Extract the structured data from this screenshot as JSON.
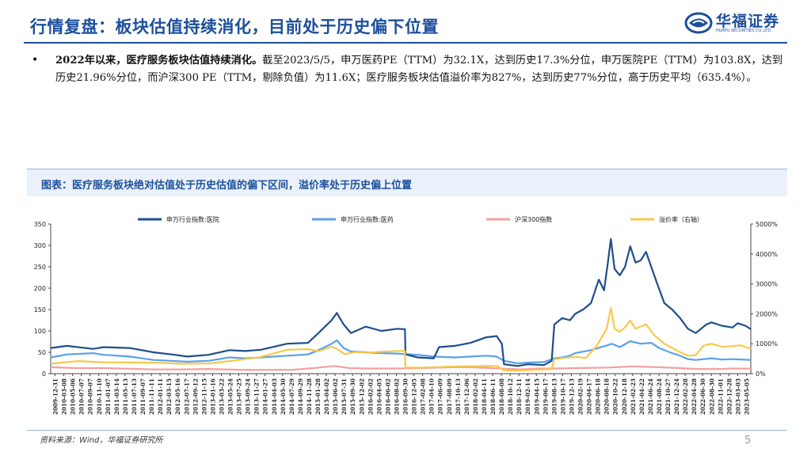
{
  "header": {
    "title": "行情复盘：板块估值持续消化，目前处于历史偏下位置",
    "logo_name": "华福证券",
    "logo_sub": "HUAFU SECURITIES CO.,LTD."
  },
  "bullet": {
    "dot": "•",
    "bold": "2022年以来，医疗服务板块估值持续消化。",
    "text": "截至2023/5/5，申万医药PE（TTM）为32.1X，达到历史17.3%分位，申万医院PE（TTM）为103.8X，达到历史21.96%分位，而沪深300 PE（TTM，剔除负值）为11.6X；医疗服务板块估值溢价率为827%，达到历史77%分位，高于历史平均（635.4%）。"
  },
  "figure": {
    "title": "图表：医疗服务板块绝对估值处于历史估值的偏下区间，溢价率处于历史偏上位置"
  },
  "footer": {
    "source": "资料来源：Wind，华福证券研究所",
    "page": "5"
  },
  "colors": {
    "brand": "#1c4f9c",
    "s1": "#1f4e8c",
    "s2": "#5aa2e8",
    "s3": "#f4a0a0",
    "s4": "#f6c94a"
  },
  "chart_data": {
    "type": "line",
    "legend_position": "top",
    "grid": false,
    "x_ticks": [
      "2009-12-31",
      "2010-03-08",
      "2010-05-06",
      "2010-07-07",
      "2010-09-07",
      "2010-11-10",
      "2011-01-07",
      "2011-03-14",
      "2011-05-13",
      "2011-07-13",
      "2011-09-07",
      "2011-11-11",
      "2012-01-11",
      "2012-03-15",
      "2012-05-16",
      "2012-07-17",
      "2012-09-12",
      "2012-11-15",
      "2013-01-16",
      "2013-03-22",
      "2013-05-24",
      "2013-07-25",
      "2013-09-24",
      "2013-11-27",
      "2014-01-27",
      "2014-04-03",
      "2014-05-30",
      "2014-07-29",
      "2014-09-29",
      "2014-11-28",
      "2015-01-28",
      "2015-04-02",
      "2015-06-02",
      "2015-07-31",
      "2015-09-30",
      "2015-12-02",
      "2016-02-02",
      "2016-04-05",
      "2016-06-02",
      "2016-08-02",
      "2016-09-30",
      "2016-12-05",
      "2017-02-08",
      "2017-04-10",
      "2017-06-09",
      "2017-08-09",
      "2017-10-13",
      "2017-12-06",
      "2018-02-02",
      "2018-04-11",
      "2018-06-11",
      "2018-08-08",
      "2018-10-12",
      "2018-12-11",
      "2019-02-14",
      "2019-04-15",
      "2019-06-17",
      "2019-08-13",
      "2019-10-17",
      "2019-12-13",
      "2020-02-19",
      "2020-04-17",
      "2020-06-18",
      "2020-08-18",
      "2020-10-22",
      "2020-12-18",
      "2021-02-23",
      "2021-04-22",
      "2021-06-24",
      "2021-08-24",
      "2021-10-27",
      "2021-12-24",
      "2022-02-28",
      "2022-04-28",
      "2022-06-30",
      "2022-08-30",
      "2022-11-01",
      "2022-12-28",
      "2023-03-03",
      "2023-05-05"
    ],
    "y_left": {
      "ticks": [
        "0",
        "50",
        "100",
        "150",
        "200",
        "250",
        "300",
        "350"
      ],
      "min": 0,
      "max": 350
    },
    "y_right": {
      "ticks": [
        "0%",
        "1000%",
        "2000%",
        "3000%",
        "4000%",
        "5000%"
      ],
      "min": 0,
      "max": 5000
    },
    "series": [
      {
        "name": "申万行业指数:医院",
        "axis": "left",
        "values": [
          [
            2009.99,
            60
          ],
          [
            2010.3,
            65
          ],
          [
            2010.8,
            58
          ],
          [
            2011.0,
            62
          ],
          [
            2011.5,
            60
          ],
          [
            2011.95,
            50
          ],
          [
            2012.3,
            45
          ],
          [
            2012.6,
            40
          ],
          [
            2013.0,
            44
          ],
          [
            2013.4,
            55
          ],
          [
            2013.7,
            53
          ],
          [
            2014.0,
            56
          ],
          [
            2014.5,
            70
          ],
          [
            2014.9,
            72
          ],
          [
            2015.1,
            95
          ],
          [
            2015.35,
            125
          ],
          [
            2015.45,
            142
          ],
          [
            2015.58,
            115
          ],
          [
            2015.72,
            95
          ],
          [
            2016.0,
            110
          ],
          [
            2016.3,
            100
          ],
          [
            2016.6,
            105
          ],
          [
            2016.75,
            104
          ],
          [
            2016.76,
            45
          ],
          [
            2017.0,
            38
          ],
          [
            2017.3,
            36
          ],
          [
            2017.4,
            62
          ],
          [
            2017.7,
            65
          ],
          [
            2018.0,
            72
          ],
          [
            2018.3,
            85
          ],
          [
            2018.5,
            88
          ],
          [
            2018.6,
            70
          ],
          [
            2018.64,
            22
          ],
          [
            2018.9,
            18
          ],
          [
            2019.1,
            22
          ],
          [
            2019.4,
            20
          ],
          [
            2019.55,
            30
          ],
          [
            2019.6,
            115
          ],
          [
            2019.75,
            130
          ],
          [
            2019.9,
            125
          ],
          [
            2020.0,
            140
          ],
          [
            2020.15,
            150
          ],
          [
            2020.3,
            165
          ],
          [
            2020.45,
            220
          ],
          [
            2020.55,
            195
          ],
          [
            2020.62,
            258
          ],
          [
            2020.68,
            315
          ],
          [
            2020.75,
            245
          ],
          [
            2020.85,
            230
          ],
          [
            2020.95,
            250
          ],
          [
            2021.05,
            298
          ],
          [
            2021.15,
            260
          ],
          [
            2021.25,
            265
          ],
          [
            2021.35,
            285
          ],
          [
            2021.45,
            250
          ],
          [
            2021.55,
            215
          ],
          [
            2021.7,
            165
          ],
          [
            2021.85,
            150
          ],
          [
            2022.0,
            130
          ],
          [
            2022.15,
            105
          ],
          [
            2022.3,
            95
          ],
          [
            2022.5,
            115
          ],
          [
            2022.6,
            120
          ],
          [
            2022.8,
            112
          ],
          [
            2023.0,
            108
          ],
          [
            2023.1,
            118
          ],
          [
            2023.25,
            112
          ],
          [
            2023.35,
            104
          ]
        ]
      },
      {
        "name": "申万行业指数:医药",
        "axis": "left",
        "values": [
          [
            2009.99,
            38
          ],
          [
            2010.3,
            45
          ],
          [
            2010.8,
            48
          ],
          [
            2011.0,
            44
          ],
          [
            2011.5,
            40
          ],
          [
            2011.95,
            32
          ],
          [
            2012.3,
            30
          ],
          [
            2012.6,
            28
          ],
          [
            2013.0,
            30
          ],
          [
            2013.4,
            38
          ],
          [
            2013.7,
            36
          ],
          [
            2014.0,
            38
          ],
          [
            2014.5,
            42
          ],
          [
            2014.9,
            45
          ],
          [
            2015.1,
            55
          ],
          [
            2015.35,
            70
          ],
          [
            2015.45,
            78
          ],
          [
            2015.58,
            60
          ],
          [
            2015.72,
            52
          ],
          [
            2016.0,
            50
          ],
          [
            2016.3,
            48
          ],
          [
            2016.6,
            47
          ],
          [
            2016.75,
            46
          ],
          [
            2017.0,
            44
          ],
          [
            2017.3,
            40
          ],
          [
            2017.7,
            38
          ],
          [
            2018.0,
            40
          ],
          [
            2018.3,
            42
          ],
          [
            2018.5,
            40
          ],
          [
            2018.64,
            30
          ],
          [
            2018.9,
            24
          ],
          [
            2019.1,
            26
          ],
          [
            2019.4,
            27
          ],
          [
            2019.6,
            36
          ],
          [
            2019.75,
            38
          ],
          [
            2019.9,
            42
          ],
          [
            2020.0,
            48
          ],
          [
            2020.3,
            55
          ],
          [
            2020.6,
            66
          ],
          [
            2020.7,
            70
          ],
          [
            2020.85,
            62
          ],
          [
            2021.05,
            76
          ],
          [
            2021.25,
            70
          ],
          [
            2021.45,
            72
          ],
          [
            2021.6,
            60
          ],
          [
            2021.85,
            48
          ],
          [
            2022.0,
            42
          ],
          [
            2022.15,
            34
          ],
          [
            2022.3,
            32
          ],
          [
            2022.6,
            36
          ],
          [
            2022.8,
            33
          ],
          [
            2023.0,
            34
          ],
          [
            2023.35,
            32
          ]
        ]
      },
      {
        "name": "沪深300指数",
        "axis": "left",
        "values": [
          [
            2009.99,
            15
          ],
          [
            2010.5,
            13
          ],
          [
            2011.0,
            13
          ],
          [
            2011.95,
            10
          ],
          [
            2012.5,
            10
          ],
          [
            2013.0,
            11
          ],
          [
            2013.6,
            9
          ],
          [
            2014.0,
            9
          ],
          [
            2014.6,
            9
          ],
          [
            2015.0,
            13
          ],
          [
            2015.4,
            18
          ],
          [
            2015.7,
            13
          ],
          [
            2016.0,
            12
          ],
          [
            2016.6,
            12
          ],
          [
            2017.0,
            13
          ],
          [
            2017.7,
            15
          ],
          [
            2018.0,
            15
          ],
          [
            2018.6,
            12
          ],
          [
            2018.95,
            10
          ],
          [
            2019.3,
            12
          ],
          [
            2019.6,
            12
          ],
          [
            2020.0,
            13
          ],
          [
            2020.6,
            14
          ],
          [
            2021.1,
            17
          ],
          [
            2021.6,
            15
          ],
          [
            2022.0,
            13
          ],
          [
            2022.3,
            11
          ],
          [
            2022.8,
            11
          ],
          [
            2023.0,
            12
          ],
          [
            2023.35,
            11.6
          ]
        ]
      },
      {
        "name": "溢价率（右轴）",
        "axis": "right",
        "values": [
          [
            2009.99,
            330
          ],
          [
            2010.5,
            420
          ],
          [
            2011.0,
            380
          ],
          [
            2011.95,
            370
          ],
          [
            2012.5,
            330
          ],
          [
            2013.0,
            340
          ],
          [
            2013.6,
            460
          ],
          [
            2014.0,
            560
          ],
          [
            2014.5,
            800
          ],
          [
            2014.9,
            820
          ],
          [
            2015.1,
            750
          ],
          [
            2015.35,
            900
          ],
          [
            2015.45,
            830
          ],
          [
            2015.6,
            650
          ],
          [
            2015.8,
            720
          ],
          [
            2016.0,
            700
          ],
          [
            2016.3,
            730
          ],
          [
            2016.6,
            760
          ],
          [
            2016.75,
            760
          ],
          [
            2016.76,
            210
          ],
          [
            2017.0,
            200
          ],
          [
            2017.4,
            220
          ],
          [
            2017.7,
            240
          ],
          [
            2018.0,
            250
          ],
          [
            2018.5,
            260
          ],
          [
            2018.64,
            110
          ],
          [
            2018.9,
            100
          ],
          [
            2019.1,
            120
          ],
          [
            2019.4,
            140
          ],
          [
            2019.55,
            150
          ],
          [
            2019.6,
            480
          ],
          [
            2019.75,
            520
          ],
          [
            2020.0,
            560
          ],
          [
            2020.2,
            520
          ],
          [
            2020.4,
            900
          ],
          [
            2020.5,
            1200
          ],
          [
            2020.6,
            1500
          ],
          [
            2020.68,
            2200
          ],
          [
            2020.75,
            1500
          ],
          [
            2020.85,
            1400
          ],
          [
            2020.95,
            1550
          ],
          [
            2021.05,
            1780
          ],
          [
            2021.15,
            1500
          ],
          [
            2021.35,
            1650
          ],
          [
            2021.5,
            1300
          ],
          [
            2021.7,
            1000
          ],
          [
            2021.85,
            860
          ],
          [
            2022.0,
            720
          ],
          [
            2022.15,
            600
          ],
          [
            2022.3,
            620
          ],
          [
            2022.45,
            940
          ],
          [
            2022.6,
            1000
          ],
          [
            2022.8,
            900
          ],
          [
            2023.0,
            920
          ],
          [
            2023.15,
            950
          ],
          [
            2023.35,
            827
          ]
        ]
      }
    ]
  }
}
